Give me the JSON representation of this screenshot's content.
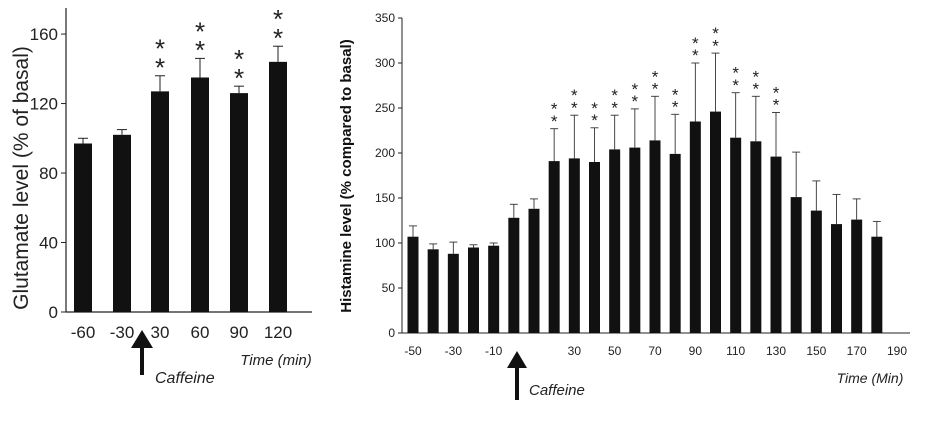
{
  "chart_data": [
    {
      "type": "bar",
      "categories": [
        "-60",
        "-30",
        "30",
        "60",
        "90",
        "120"
      ],
      "values": [
        97,
        102,
        127,
        135,
        126,
        144
      ],
      "errors": [
        3,
        3,
        9,
        11,
        4,
        9
      ],
      "significance": [
        "",
        "",
        "**",
        "**",
        "**",
        "**"
      ],
      "ylabel": "Glutamate level (% of basal)",
      "xlabel": "Time (min)",
      "yticks": [
        "0",
        "40",
        "80",
        "120",
        "160"
      ],
      "ylim": [
        0,
        175
      ],
      "annotation": "Caffeine",
      "bar_color": "#111111"
    },
    {
      "type": "bar",
      "x": [
        -50,
        -40,
        -30,
        -20,
        -10,
        0,
        10,
        20,
        30,
        40,
        50,
        60,
        70,
        80,
        90,
        100,
        110,
        120,
        130,
        140,
        150,
        160,
        170,
        180,
        190
      ],
      "values": [
        107,
        93,
        88,
        95,
        97,
        128,
        138,
        191,
        194,
        190,
        204,
        206,
        214,
        199,
        235,
        246,
        217,
        213,
        196,
        151,
        136,
        121,
        126,
        107,
        0
      ],
      "errors": [
        12,
        6,
        13,
        3,
        3,
        15,
        11,
        36,
        48,
        38,
        38,
        43,
        49,
        44,
        65,
        65,
        50,
        50,
        49,
        50,
        33,
        33,
        23,
        17,
        0
      ],
      "significance": [
        "",
        "",
        "",
        "",
        "",
        "",
        "",
        "**",
        "**",
        "**",
        "**",
        "**",
        "**",
        "**",
        "**",
        "**",
        "**",
        "**",
        "**",
        "",
        "",
        "",
        "",
        "",
        ""
      ],
      "xticks": [
        "-50",
        "-30",
        "-10",
        "30",
        "50",
        "70",
        "90",
        "110",
        "130",
        "150",
        "170",
        "190"
      ],
      "yticks": [
        "0",
        "50",
        "100",
        "150",
        "200",
        "250",
        "300",
        "350"
      ],
      "ylim": [
        0,
        350
      ],
      "ylabel": "Histamine level (% compared to basal)",
      "xlabel": "Time (Min)",
      "annotation": "Caffeine",
      "bar_color": "#111111"
    }
  ]
}
